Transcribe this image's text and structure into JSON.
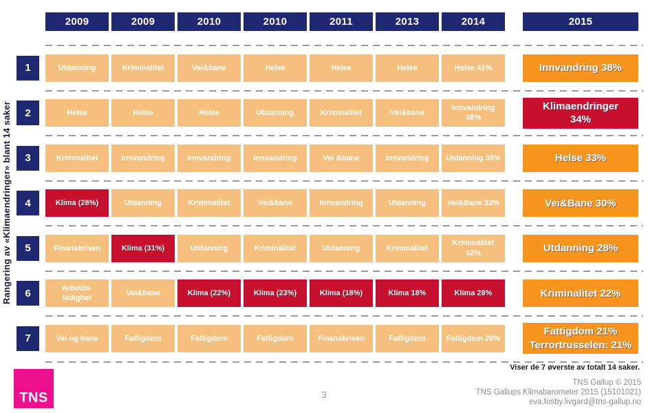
{
  "slide": {
    "y_axis_label": "Rangering av «Klimaendringer» blant 14 saker",
    "footnote": "Viser de 7 øverste av totalt 14 saker.",
    "page_number": "3",
    "logo_text": "TNS",
    "credit_line1": "TNS Gallup © 2015",
    "credit_line2": "TNS Gallups Klimabarometer 2015 (15101021)",
    "credit_line3": "eva.fosby.livgard@tns-gallup.no"
  },
  "colors": {
    "navy": "#1F2971",
    "light_orange": "#F5C07D",
    "orange": "#F7941E",
    "red": "#C8102E",
    "magenta": "#EC0F8E",
    "dash_gray": "#9A9A9A"
  },
  "chart_data": {
    "type": "table",
    "title": "Rangering av «Klimaendringer» blant 14 saker",
    "columns": [
      "2009",
      "2009",
      "2010",
      "2010",
      "2011",
      "2013",
      "2014",
      "2015"
    ],
    "rows": [
      {
        "rank": "1",
        "cells": [
          {
            "label": "Utdanning",
            "color": "tan"
          },
          {
            "label": "Kriminalitet",
            "color": "tan"
          },
          {
            "label": "Vei&bane",
            "color": "tan"
          },
          {
            "label": "Helse",
            "color": "tan"
          },
          {
            "label": "Helse",
            "color": "tan"
          },
          {
            "label": "Helse",
            "color": "tan"
          },
          {
            "label": "Helse 41%",
            "color": "tan"
          },
          {
            "label": "Innvandring 38%",
            "color": "orange"
          }
        ]
      },
      {
        "rank": "2",
        "cells": [
          {
            "label": "Helse",
            "color": "tan"
          },
          {
            "label": "Helse",
            "color": "tan"
          },
          {
            "label": "Helse",
            "color": "tan"
          },
          {
            "label": "Utdanning",
            "color": "tan"
          },
          {
            "label": "Kriminalitet",
            "color": "tan"
          },
          {
            "label": "Vei&bane",
            "color": "tan"
          },
          {
            "label": "Innvandring\n38%",
            "color": "tan"
          },
          {
            "label": "Klimaendringer\n34%",
            "color": "red"
          }
        ]
      },
      {
        "rank": "3",
        "cells": [
          {
            "label": "Kriminalitet",
            "color": "tan"
          },
          {
            "label": "Innvandring",
            "color": "tan"
          },
          {
            "label": "Innvandring",
            "color": "tan"
          },
          {
            "label": "Innvandring",
            "color": "tan"
          },
          {
            "label": "Vei &bane",
            "color": "tan"
          },
          {
            "label": "Innvandring",
            "color": "tan"
          },
          {
            "label": "Utdanning 35%",
            "color": "tan"
          },
          {
            "label": "Helse 33%",
            "color": "orange"
          }
        ]
      },
      {
        "rank": "4",
        "cells": [
          {
            "label": "Klima (28%)",
            "color": "red"
          },
          {
            "label": "Utdanning",
            "color": "tan"
          },
          {
            "label": "Kriminalitet",
            "color": "tan"
          },
          {
            "label": "Vei&bane",
            "color": "tan"
          },
          {
            "label": "Innvandring",
            "color": "tan"
          },
          {
            "label": "Utdanning",
            "color": "tan"
          },
          {
            "label": "Vei&Bane 33%",
            "color": "tan"
          },
          {
            "label": "Vei&Bane 30%",
            "color": "orange"
          }
        ]
      },
      {
        "rank": "5",
        "cells": [
          {
            "label": "Finanskrisen",
            "color": "tan"
          },
          {
            "label": "Klima (31%)",
            "color": "red"
          },
          {
            "label": "Utdanning",
            "color": "tan"
          },
          {
            "label": "Kriminalitet",
            "color": "tan"
          },
          {
            "label": "Utdanning",
            "color": "tan"
          },
          {
            "label": "Kriminalitet",
            "color": "tan"
          },
          {
            "label": "Kriminalitet\n32%",
            "color": "tan"
          },
          {
            "label": "Utdanning 28%",
            "color": "orange"
          }
        ]
      },
      {
        "rank": "6",
        "cells": [
          {
            "label": "Arbeids-\nledighet",
            "color": "tan"
          },
          {
            "label": "Vei&bane",
            "color": "tan"
          },
          {
            "label": "Klima (22%)",
            "color": "red"
          },
          {
            "label": "Klima (23%)",
            "color": "red"
          },
          {
            "label": "Klima (18%)",
            "color": "red"
          },
          {
            "label": "Klima 18%",
            "color": "red"
          },
          {
            "label": "Klima 28%",
            "color": "red"
          },
          {
            "label": "Kriminalitet 22%",
            "color": "orange"
          }
        ]
      },
      {
        "rank": "7",
        "cells": [
          {
            "label": "Vei og bane",
            "color": "tan"
          },
          {
            "label": "Fattigdom",
            "color": "tan"
          },
          {
            "label": "Fattigdom",
            "color": "tan"
          },
          {
            "label": "Fattigdom",
            "color": "tan"
          },
          {
            "label": "Finanskrisen",
            "color": "tan"
          },
          {
            "label": "Fattigdom",
            "color": "tan"
          },
          {
            "label": "Fattigdom 20%",
            "color": "tan"
          },
          {
            "label": "Fattigdom 21%\nTerrortrusselen: 21%",
            "color": "orange"
          }
        ]
      }
    ]
  }
}
